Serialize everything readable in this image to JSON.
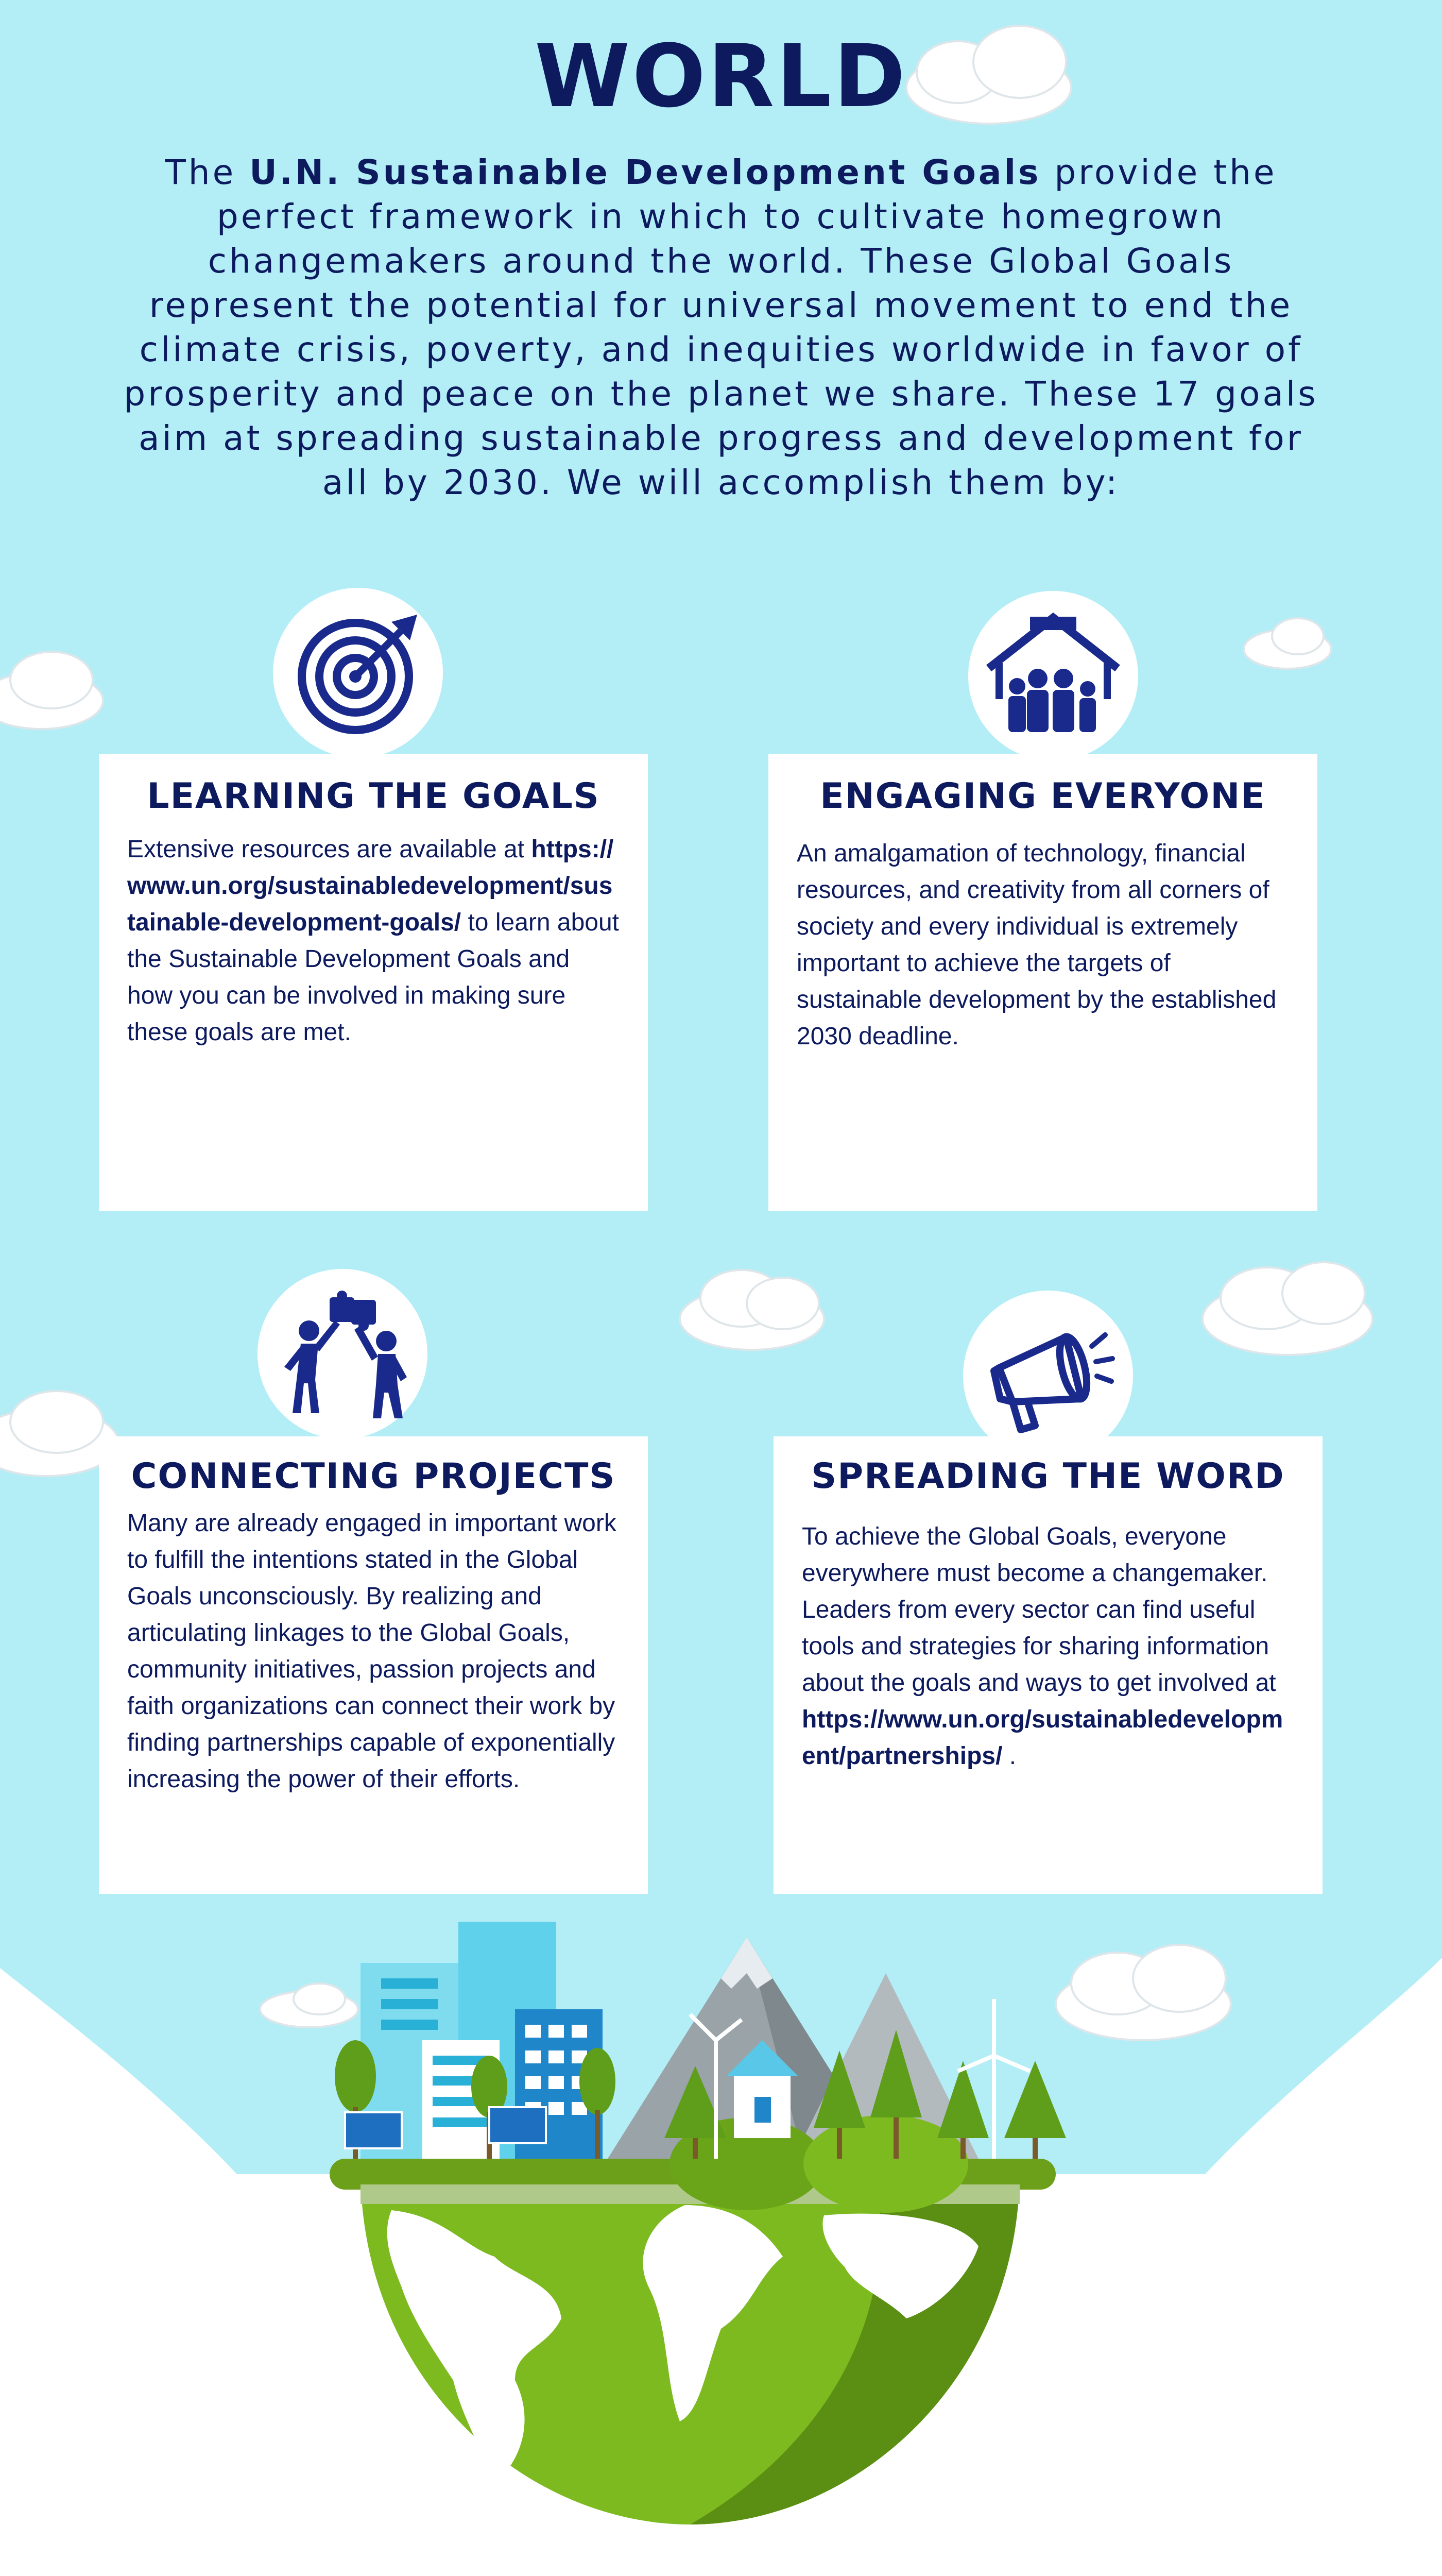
{
  "header": {
    "title": "WORLD"
  },
  "intro": {
    "text_before": "The ",
    "bold": "U.N. Sustainable Development Goals",
    "text_after": " provide the perfect framework in which to cultivate homegrown changemakers around the world.  These Global Goals represent the potential for universal movement to end the climate crisis, poverty, and inequities worldwide in favor of prosperity and peace on the planet we share. These 17 goals aim at spreading sustainable progress and development for all by 2030. We will accomplish them by:"
  },
  "cards": [
    {
      "title": "LEARNING THE GOALS",
      "icon": "target-icon",
      "text_before": "Extensive resources are available at ",
      "link": "https://www.un.org/sustainabledevelopment/sustainable-development-goals/",
      "text_after": " to learn about the Sustainable Development Goals and how you can be involved in making sure these goals are met."
    },
    {
      "title": "ENGAGING EVERYONE",
      "icon": "family-house-icon",
      "text": "An amalgamation of technology, financial resources, and creativity from all corners of society and every individual is extremely important to achieve the targets of sustainable development by the established 2030 deadline."
    },
    {
      "title": "CONNECTING PROJECTS",
      "icon": "puzzle-people-icon",
      "text": "Many are already engaged in important work to fulfill the intentions stated in the Global Goals unconsciously.  By realizing and articulating linkages to the Global Goals, community initiatives, passion projects and faith organizations can connect their work by finding partnerships capable of exponentially increasing the power of their efforts."
    },
    {
      "title": "SPREADING THE WORD",
      "icon": "megaphone-icon",
      "text_before": "To achieve the Global Goals, everyone everywhere must become a changemaker.  Leaders from every sector can find useful tools and strategies for sharing information about the goals and ways to get involved at ",
      "link": "https://www.un.org/sustainabledevelopment/partnerships/",
      "text_after": " ."
    }
  ],
  "colors": {
    "sky": "#b3eef7",
    "navy": "#0d1b5e",
    "card": "#ffffff",
    "globe_green": "#7dba1f",
    "globe_dark": "#5b8f14"
  }
}
